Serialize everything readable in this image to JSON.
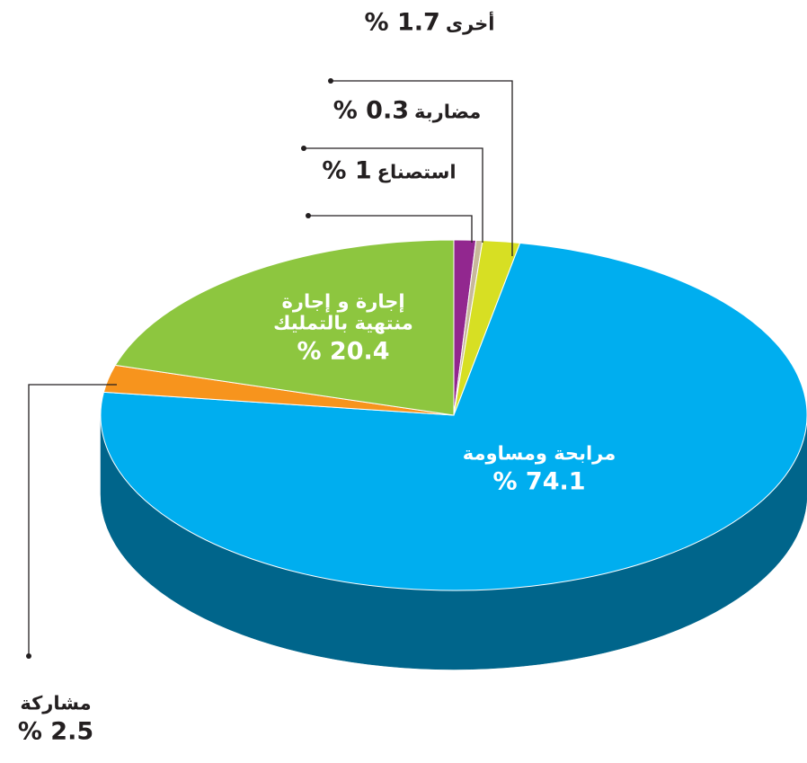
{
  "chart_data": {
    "type": "pie",
    "categories": [
      "استصناع",
      "مضاربة",
      "أخرى",
      "مرابحة ومساومة",
      "مشاركة",
      "إجارة و إجارة منتهية بالتمليك"
    ],
    "values": [
      1,
      0.3,
      1.7,
      74.1,
      2.5,
      20.4
    ],
    "value_labels": [
      "% 1",
      "% 0.3",
      "% 1.7",
      "% 74.1",
      "% 2.5",
      "% 20.4"
    ],
    "colors": [
      "#92278f",
      "#c8b99a",
      "#d7df23",
      "#00aeef",
      "#f7941d",
      "#8dc63f"
    ]
  }
}
